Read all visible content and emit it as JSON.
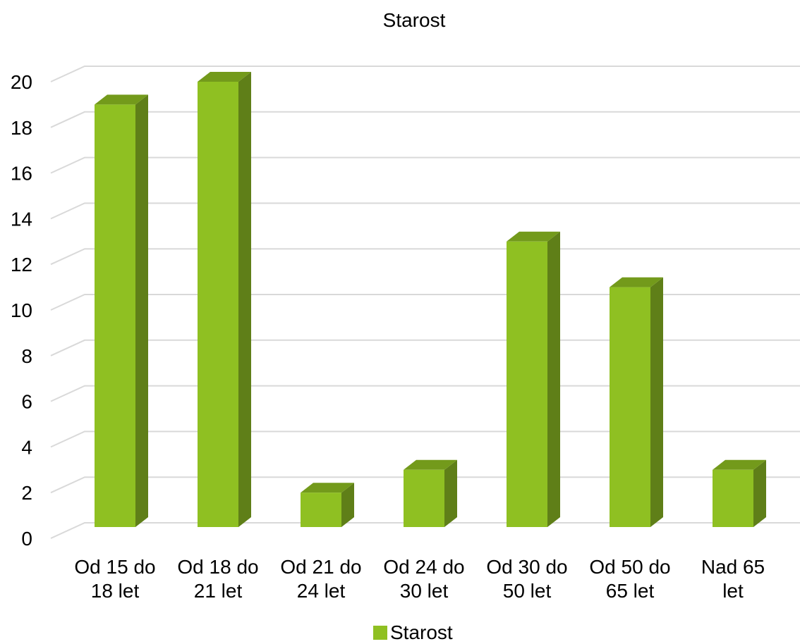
{
  "chart_data": {
    "type": "bar",
    "style": "3d-column",
    "title": "Starost",
    "categories": [
      [
        "Od 15 do",
        "18 let"
      ],
      [
        "Od 18 do",
        "21 let"
      ],
      [
        "Od 21 do",
        "24 let"
      ],
      [
        "Od 24 do",
        "30 let"
      ],
      [
        "Od 30 do",
        "50 let"
      ],
      [
        "Od 50 do",
        "65 let"
      ],
      [
        "Nad 65",
        "let"
      ]
    ],
    "series": [
      {
        "name": "Starost",
        "values": [
          19,
          20,
          2,
          3,
          13,
          11,
          3
        ]
      }
    ],
    "xlabel": "",
    "ylabel": "",
    "ylim": [
      0,
      20
    ],
    "yticks": [
      "0",
      "2",
      "4",
      "6",
      "8",
      "10",
      "12",
      "14",
      "16",
      "18",
      "20"
    ],
    "grid": true,
    "legend": "bottom",
    "colors": {
      "bar_front": "#8fc022",
      "bar_side": "#5f7f18",
      "bar_top": "#739a1b",
      "grid": "#d9d9d9"
    }
  }
}
